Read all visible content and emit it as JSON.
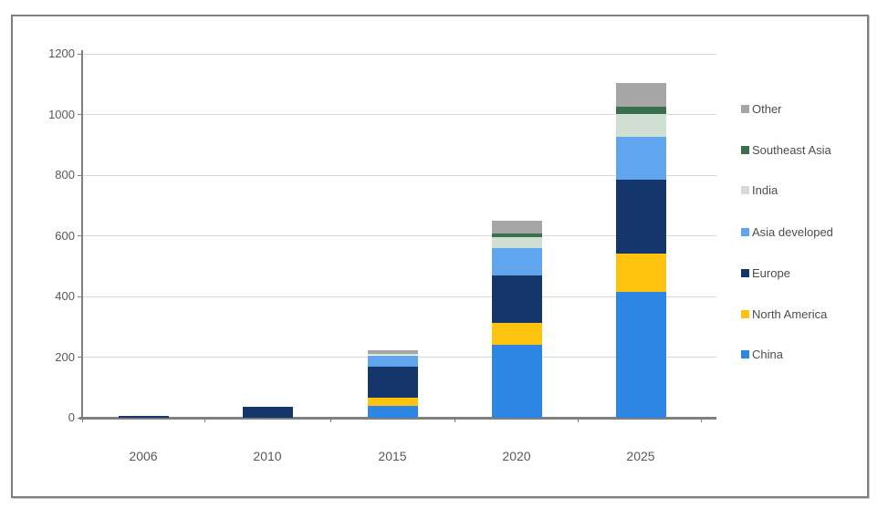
{
  "figure": {
    "background": "#ffffff",
    "border_color": "#7f7f7f",
    "gridline_color": "#d9d9d9",
    "axis_color": "#7f7f7f",
    "tick_label_color": "#595959",
    "legend_text_color": "#4d4d4d"
  },
  "chart_data": {
    "type": "bar",
    "stacked": true,
    "title": "",
    "xlabel": "",
    "ylabel": "",
    "categories": [
      "2006",
      "2010",
      "2015",
      "2020",
      "2025"
    ],
    "series": [
      {
        "name": "China",
        "color": "#2e86e4",
        "values": [
          0,
          0,
          40,
          240,
          415
        ]
      },
      {
        "name": "North America",
        "color": "#fdc30f",
        "values": [
          0,
          0,
          25,
          72,
          125
        ]
      },
      {
        "name": "Europe",
        "color": "#15366b",
        "values": [
          5,
          35,
          103,
          158,
          245
        ]
      },
      {
        "name": "Asia developed",
        "color": "#61a5ee",
        "values": [
          0,
          0,
          38,
          90,
          140
        ]
      },
      {
        "name": "India",
        "color": "#cfe0d2",
        "values": [
          0,
          0,
          5,
          35,
          76
        ]
      },
      {
        "name": "Southeast Asia",
        "color": "#3a7050",
        "values": [
          0,
          0,
          0,
          12,
          24
        ]
      },
      {
        "name": "Other",
        "color": "#a6a6a6",
        "values": [
          0,
          0,
          12,
          42,
          78
        ]
      }
    ],
    "legend_order": [
      "Other",
      "Southeast Asia",
      "India",
      "Asia developed",
      "Europe",
      "North America",
      "China"
    ],
    "ylim": [
      0,
      1200
    ],
    "yticks": [
      0,
      200,
      400,
      600,
      800,
      1000,
      1200
    ],
    "grid": true,
    "legend_position": "right"
  }
}
